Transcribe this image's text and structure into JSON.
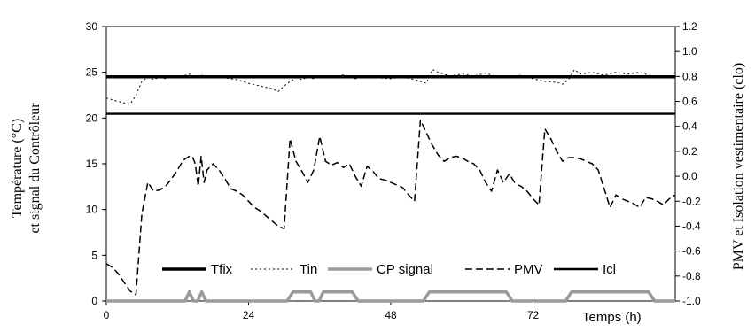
{
  "chart_data": {
    "type": "line",
    "title": "",
    "xlabel": "Temps (h)",
    "ylabel_left": [
      "Température (°C)",
      "et signal du Contrôleur"
    ],
    "ylabel_right": "PMV et Isolation vestimentaire (clo)",
    "xlim": [
      0,
      96
    ],
    "ylim_left": [
      0,
      30
    ],
    "ylim_right": [
      -1.0,
      1.2
    ],
    "xticks": [
      0,
      24,
      48,
      72
    ],
    "xtick_labels": [
      "0",
      "24",
      "48",
      "72"
    ],
    "yticks_left": [
      0,
      5,
      10,
      15,
      20,
      25,
      30
    ],
    "ytick_labels_left": [
      "0",
      "5",
      "10",
      "15",
      "20",
      "25",
      "30"
    ],
    "yticks_right": [
      -1.0,
      -0.8,
      -0.6,
      -0.4,
      -0.2,
      0.0,
      0.2,
      0.4,
      0.6,
      0.8,
      1.0,
      1.2
    ],
    "ytick_labels_right": [
      "-1.0",
      "-0.8",
      "-0.6",
      "-0.4",
      "-0.2",
      "0.0",
      "0.2",
      "0.4",
      "0.6",
      "0.8",
      "1.0",
      "1.2"
    ],
    "grid": false,
    "legend_position": "bottom",
    "series": [
      {
        "name": "Tfix",
        "axis": "left",
        "style": "solid-thick",
        "color": "#000000",
        "x": [
          0,
          96
        ],
        "y": [
          24.5,
          24.5
        ]
      },
      {
        "name": "Tin",
        "axis": "left",
        "style": "dotted",
        "color": "#000000",
        "x": [
          0,
          2,
          4,
          5,
          6,
          7,
          8,
          9,
          10,
          11,
          12,
          13,
          14,
          15,
          16,
          17,
          18,
          20,
          22,
          24,
          26,
          28,
          29,
          30,
          31,
          32,
          33,
          34,
          35,
          36,
          38,
          40,
          42,
          44,
          46,
          48,
          50,
          52,
          53,
          54,
          55,
          56,
          58,
          60,
          62,
          64,
          66,
          68,
          70,
          72,
          74,
          76,
          77,
          78,
          79,
          80,
          82,
          84,
          86,
          88,
          90,
          92,
          94,
          96
        ],
        "y": [
          22.2,
          21.8,
          21.5,
          22.5,
          24.0,
          24.5,
          24.2,
          24.5,
          24.3,
          24.6,
          24.4,
          24.6,
          24.8,
          24.5,
          24.7,
          24.4,
          24.6,
          24.4,
          24.2,
          23.8,
          23.5,
          23.2,
          22.9,
          23.5,
          24.0,
          24.4,
          24.2,
          24.5,
          24.3,
          24.6,
          24.4,
          24.7,
          24.3,
          24.6,
          24.4,
          24.3,
          24.5,
          24.2,
          24.0,
          23.8,
          25.3,
          25.0,
          24.6,
          24.8,
          24.6,
          24.9,
          24.5,
          24.4,
          24.7,
          24.3,
          24.0,
          23.9,
          23.7,
          24.2,
          25.3,
          24.8,
          25.0,
          24.7,
          25.0,
          24.8,
          25.0,
          24.6,
          24.4,
          24.5
        ]
      },
      {
        "name": "CP signal",
        "axis": "left",
        "style": "solid-gray",
        "color": "#999999",
        "x": [
          0,
          13.3,
          14,
          14.7,
          15.4,
          16.1,
          16.8,
          30.5,
          31.5,
          34.5,
          35.2,
          35.9,
          36.6,
          41.5,
          42.5,
          53.5,
          54.5,
          67.5,
          68.5,
          77.5,
          78.5,
          91.5,
          92.5,
          96
        ],
        "y": [
          0,
          0,
          1,
          0,
          0,
          1,
          0,
          0,
          1,
          1,
          0,
          0,
          1,
          1,
          0,
          0,
          1,
          1,
          0,
          0,
          1,
          1,
          0,
          0
        ]
      },
      {
        "name": "PMV",
        "axis": "right",
        "style": "dashed",
        "color": "#000000",
        "x": [
          0,
          1,
          2,
          3,
          4,
          5,
          6,
          7,
          8,
          9,
          10,
          11,
          12,
          13,
          14,
          14.5,
          15,
          15.5,
          16,
          16.5,
          17,
          18,
          19,
          20,
          21,
          22,
          23,
          24,
          25,
          26,
          27,
          28,
          29,
          30,
          31,
          32,
          33,
          34,
          35,
          36,
          37,
          38,
          39,
          40,
          41,
          42,
          43,
          44,
          45,
          46,
          47,
          48,
          49,
          50,
          51,
          52,
          53,
          54,
          55,
          56,
          57,
          58,
          59,
          60,
          61,
          62,
          63,
          64,
          65,
          66,
          67,
          68,
          69,
          70,
          71,
          72,
          73,
          74,
          75,
          76,
          77,
          78,
          79,
          80,
          81,
          82,
          83,
          84,
          85,
          86,
          87,
          88,
          89,
          90,
          91,
          92,
          93,
          94,
          95,
          96
        ],
        "y": [
          -0.7,
          -0.73,
          -0.78,
          -0.85,
          -0.92,
          -0.95,
          -0.3,
          -0.05,
          -0.12,
          -0.11,
          -0.08,
          -0.02,
          0.05,
          0.13,
          0.16,
          0.16,
          0.1,
          -0.08,
          0.16,
          -0.05,
          0.05,
          0.1,
          0.05,
          -0.02,
          -0.1,
          -0.12,
          -0.15,
          -0.2,
          -0.25,
          -0.28,
          -0.32,
          -0.36,
          -0.4,
          -0.42,
          0.3,
          0.12,
          0.04,
          -0.05,
          0.05,
          0.32,
          0.12,
          0.09,
          0.11,
          0.07,
          0.1,
          0.0,
          -0.08,
          0.08,
          0.04,
          -0.02,
          -0.03,
          -0.05,
          -0.07,
          -0.09,
          -0.15,
          -0.2,
          0.45,
          0.35,
          0.25,
          0.17,
          0.12,
          0.15,
          0.16,
          0.15,
          0.12,
          0.1,
          0.05,
          -0.05,
          -0.12,
          0.05,
          -0.05,
          0.02,
          -0.06,
          -0.08,
          -0.12,
          -0.18,
          -0.23,
          0.38,
          0.3,
          0.2,
          0.12,
          0.15,
          0.15,
          0.14,
          0.12,
          0.1,
          0.05,
          -0.1,
          -0.25,
          -0.15,
          -0.18,
          -0.2,
          -0.22,
          -0.25,
          -0.17,
          -0.18,
          -0.2,
          -0.23,
          -0.18,
          -0.15
        ]
      },
      {
        "name": "Icl",
        "axis": "right",
        "style": "solid",
        "color": "#000000",
        "x": [
          0,
          96
        ],
        "y": [
          0.5,
          0.5
        ]
      }
    ]
  }
}
